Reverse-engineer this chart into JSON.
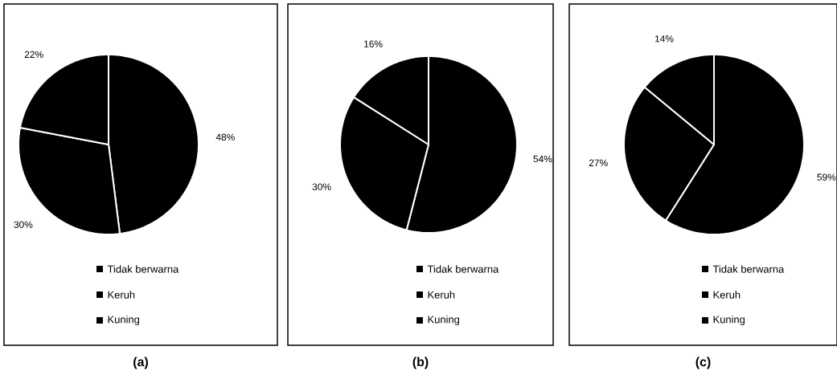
{
  "chart_data": [
    {
      "type": "pie",
      "title": "(a)",
      "categories": [
        "Tidak berwarna",
        "Keruh",
        "Kuning"
      ],
      "values": [
        48,
        30,
        22
      ],
      "value_labels": [
        "48%",
        "30%",
        "22%"
      ],
      "colors": [
        "#000000",
        "#000000",
        "#000000"
      ],
      "legend": "bottom"
    },
    {
      "type": "pie",
      "title": "(b)",
      "categories": [
        "Tidak berwarna",
        "Keruh",
        "Kuning"
      ],
      "values": [
        54,
        30,
        16
      ],
      "value_labels": [
        "54%",
        "30%",
        "16%"
      ],
      "colors": [
        "#000000",
        "#000000",
        "#000000"
      ],
      "legend": "bottom"
    },
    {
      "type": "pie",
      "title": "(c)",
      "categories": [
        "Tidak berwarna",
        "Keruh",
        "Kuning"
      ],
      "values": [
        59,
        27,
        14
      ],
      "value_labels": [
        "59%",
        "27%",
        "14%"
      ],
      "colors": [
        "#000000",
        "#000000",
        "#000000"
      ],
      "legend": "bottom"
    }
  ]
}
